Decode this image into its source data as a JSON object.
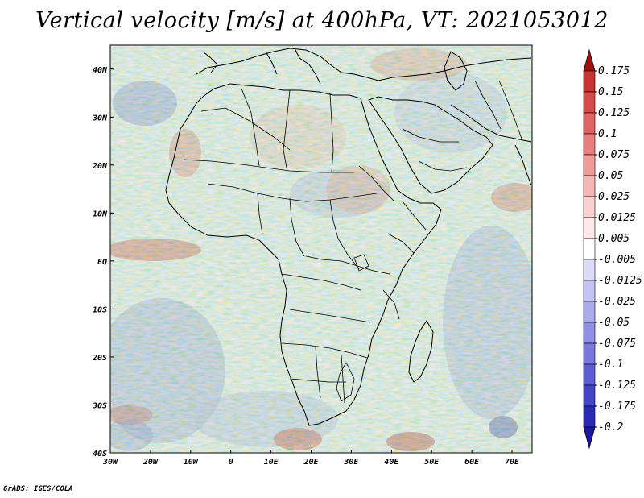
{
  "title": "Vertical velocity [m/s] at 400hPa, VT: 2021053012",
  "credit": "GrADS: IGES/COLA",
  "map": {
    "region": "Africa and Arabian Peninsula",
    "lon_range": [
      -30,
      75
    ],
    "lat_range": [
      -40,
      45
    ],
    "lon_ticks": [
      {
        "value": -30,
        "label": "30W"
      },
      {
        "value": -20,
        "label": "20W"
      },
      {
        "value": -10,
        "label": "10W"
      },
      {
        "value": 0,
        "label": "0"
      },
      {
        "value": 10,
        "label": "10E"
      },
      {
        "value": 20,
        "label": "20E"
      },
      {
        "value": 30,
        "label": "30E"
      },
      {
        "value": 40,
        "label": "40E"
      },
      {
        "value": 50,
        "label": "50E"
      },
      {
        "value": 60,
        "label": "60E"
      },
      {
        "value": 70,
        "label": "70E"
      }
    ],
    "lat_ticks": [
      {
        "value": 40,
        "label": "40N"
      },
      {
        "value": 30,
        "label": "30N"
      },
      {
        "value": 20,
        "label": "20N"
      },
      {
        "value": 10,
        "label": "10N"
      },
      {
        "value": 0,
        "label": "EQ"
      },
      {
        "value": -10,
        "label": "10S"
      },
      {
        "value": -20,
        "label": "20S"
      },
      {
        "value": -30,
        "label": "30S"
      },
      {
        "value": -40,
        "label": "40S"
      }
    ]
  },
  "colorbar": {
    "levels": [
      {
        "label": "0.175",
        "color": "#b41b1b"
      },
      {
        "label": "0.15",
        "color": "#c83232"
      },
      {
        "label": "0.125",
        "color": "#d64a4a"
      },
      {
        "label": "0.1",
        "color": "#e06464"
      },
      {
        "label": "0.075",
        "color": "#e87e7e"
      },
      {
        "label": "0.05",
        "color": "#f09a9a"
      },
      {
        "label": "0.025",
        "color": "#f7b6b6"
      },
      {
        "label": "0.0125",
        "color": "#fbd0d0"
      },
      {
        "label": "0.005",
        "color": "#fde8e8"
      },
      {
        "label": "-0.005",
        "color": "#ffffff"
      },
      {
        "label": "-0.0125",
        "color": "#dcdcf8"
      },
      {
        "label": "-0.025",
        "color": "#c4c4f4"
      },
      {
        "label": "-0.05",
        "color": "#aaaaee"
      },
      {
        "label": "-0.075",
        "color": "#9090e6"
      },
      {
        "label": "-0.1",
        "color": "#7878de"
      },
      {
        "label": "-0.125",
        "color": "#5e5ed4"
      },
      {
        "label": "-0.175",
        "color": "#4444c8"
      },
      {
        "label": "-0.2",
        "color": "#2a2ab4"
      }
    ],
    "top_color": "#a01010",
    "bottom_color": "#1a1aa0"
  }
}
